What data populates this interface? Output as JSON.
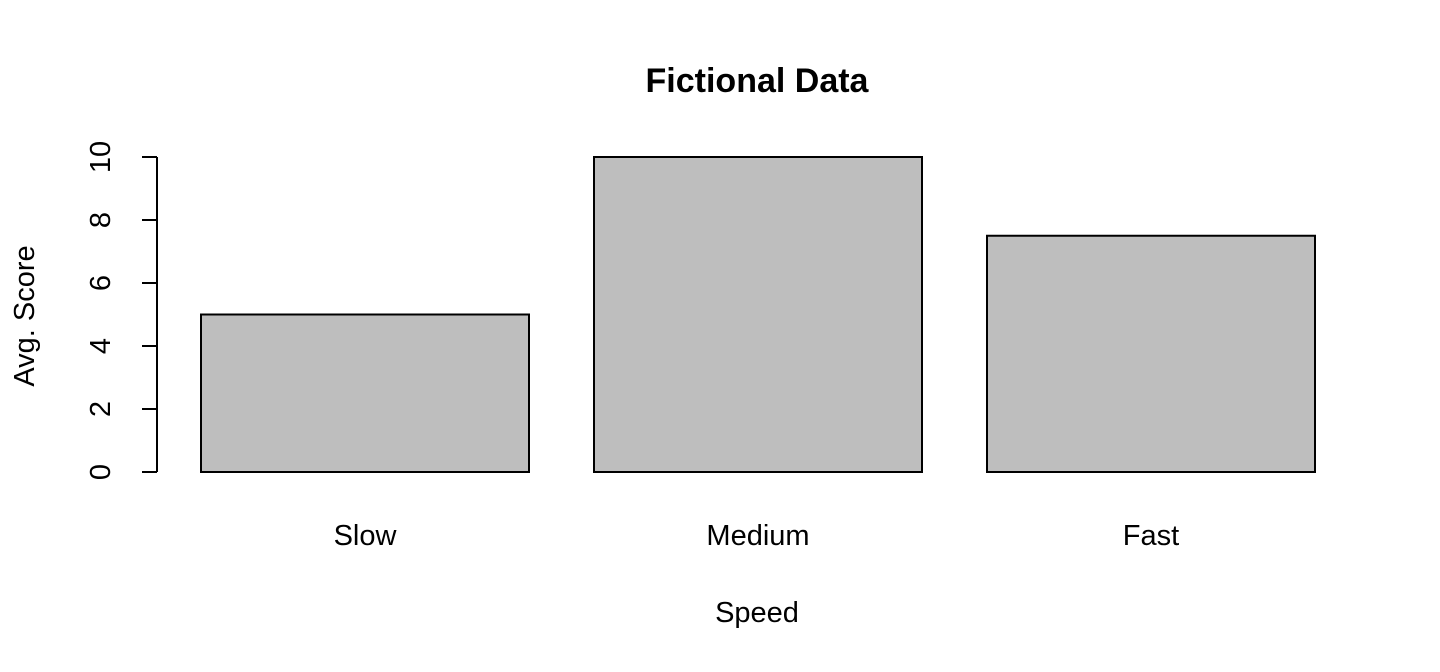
{
  "chart_data": {
    "type": "bar",
    "title": "Fictional Data",
    "xlabel": "Speed",
    "ylabel": "Avg. Score",
    "categories": [
      "Slow",
      "Medium",
      "Fast"
    ],
    "values": [
      5,
      10,
      7.5
    ],
    "ylim": [
      0,
      10
    ],
    "yticks": [
      "0",
      "2",
      "4",
      "6",
      "8",
      "10"
    ],
    "bar_color": "#bebebe",
    "grid": false,
    "legend": "none"
  }
}
